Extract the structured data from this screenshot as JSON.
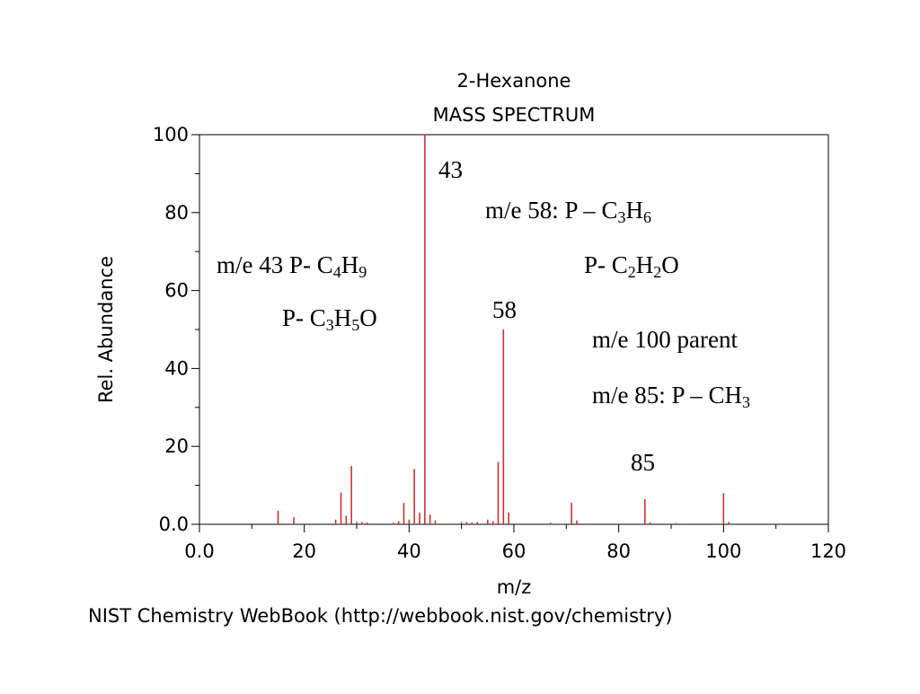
{
  "chart_data": {
    "type": "bar",
    "title": "2-Hexanone",
    "subtitle": "MASS SPECTRUM",
    "xlabel": "m/z",
    "ylabel": "Rel. Abundance",
    "xlim": [
      0,
      120
    ],
    "ylim": [
      0,
      100
    ],
    "x_ticks": [
      "0.0",
      "20",
      "40",
      "60",
      "80",
      "100",
      "120"
    ],
    "y_ticks": [
      "0.0",
      "20",
      "40",
      "60",
      "80",
      "100"
    ],
    "bar_color": "#cc3333",
    "peaks": [
      {
        "x": 15,
        "y": 3.5
      },
      {
        "x": 18,
        "y": 1.8
      },
      {
        "x": 26,
        "y": 1.2
      },
      {
        "x": 27,
        "y": 8.2
      },
      {
        "x": 28,
        "y": 2.2
      },
      {
        "x": 29,
        "y": 15.0
      },
      {
        "x": 30,
        "y": 0.6
      },
      {
        "x": 31,
        "y": 0.6
      },
      {
        "x": 32,
        "y": 0.5
      },
      {
        "x": 37,
        "y": 0.4
      },
      {
        "x": 38,
        "y": 0.8
      },
      {
        "x": 39,
        "y": 5.5
      },
      {
        "x": 40,
        "y": 1.2
      },
      {
        "x": 41,
        "y": 14.2
      },
      {
        "x": 42,
        "y": 3.0
      },
      {
        "x": 43,
        "y": 100
      },
      {
        "x": 44,
        "y": 2.5
      },
      {
        "x": 45,
        "y": 1.0
      },
      {
        "x": 50,
        "y": 0.6
      },
      {
        "x": 51,
        "y": 0.6
      },
      {
        "x": 52,
        "y": 0.5
      },
      {
        "x": 53,
        "y": 0.6
      },
      {
        "x": 55,
        "y": 1.2
      },
      {
        "x": 56,
        "y": 0.8
      },
      {
        "x": 57,
        "y": 16.0
      },
      {
        "x": 58,
        "y": 50.0
      },
      {
        "x": 59,
        "y": 3.0
      },
      {
        "x": 67,
        "y": 0.4
      },
      {
        "x": 71,
        "y": 5.5
      },
      {
        "x": 72,
        "y": 1.0
      },
      {
        "x": 85,
        "y": 6.5
      },
      {
        "x": 86,
        "y": 0.5
      },
      {
        "x": 91,
        "y": 0.3
      },
      {
        "x": 100,
        "y": 8.0
      },
      {
        "x": 101,
        "y": 0.6
      }
    ],
    "source": "NIST Chemistry WebBook (http://webbook.nist.gov/chemistry)"
  },
  "annotations": {
    "peak_43": "43",
    "peak_58": "58",
    "peak_85": "85",
    "m43_line1": {
      "a": "m/e 43 P- C",
      "b": "4",
      "c": "H",
      "d": "9"
    },
    "m43_line2": {
      "a": "P-  C",
      "b": "3",
      "c": "H",
      "d": "5",
      "e": "O"
    },
    "m58_line1": {
      "a": "m/e 58: P – C",
      "b": "3",
      "c": "H",
      "d": "6"
    },
    "m58_line2": {
      "a": "P- C",
      "b": "2",
      "c": "H",
      "d": "2",
      "e": "O"
    },
    "m100": "m/e 100 parent",
    "m85": {
      "a": "m/e 85: P – CH",
      "b": "3"
    }
  }
}
